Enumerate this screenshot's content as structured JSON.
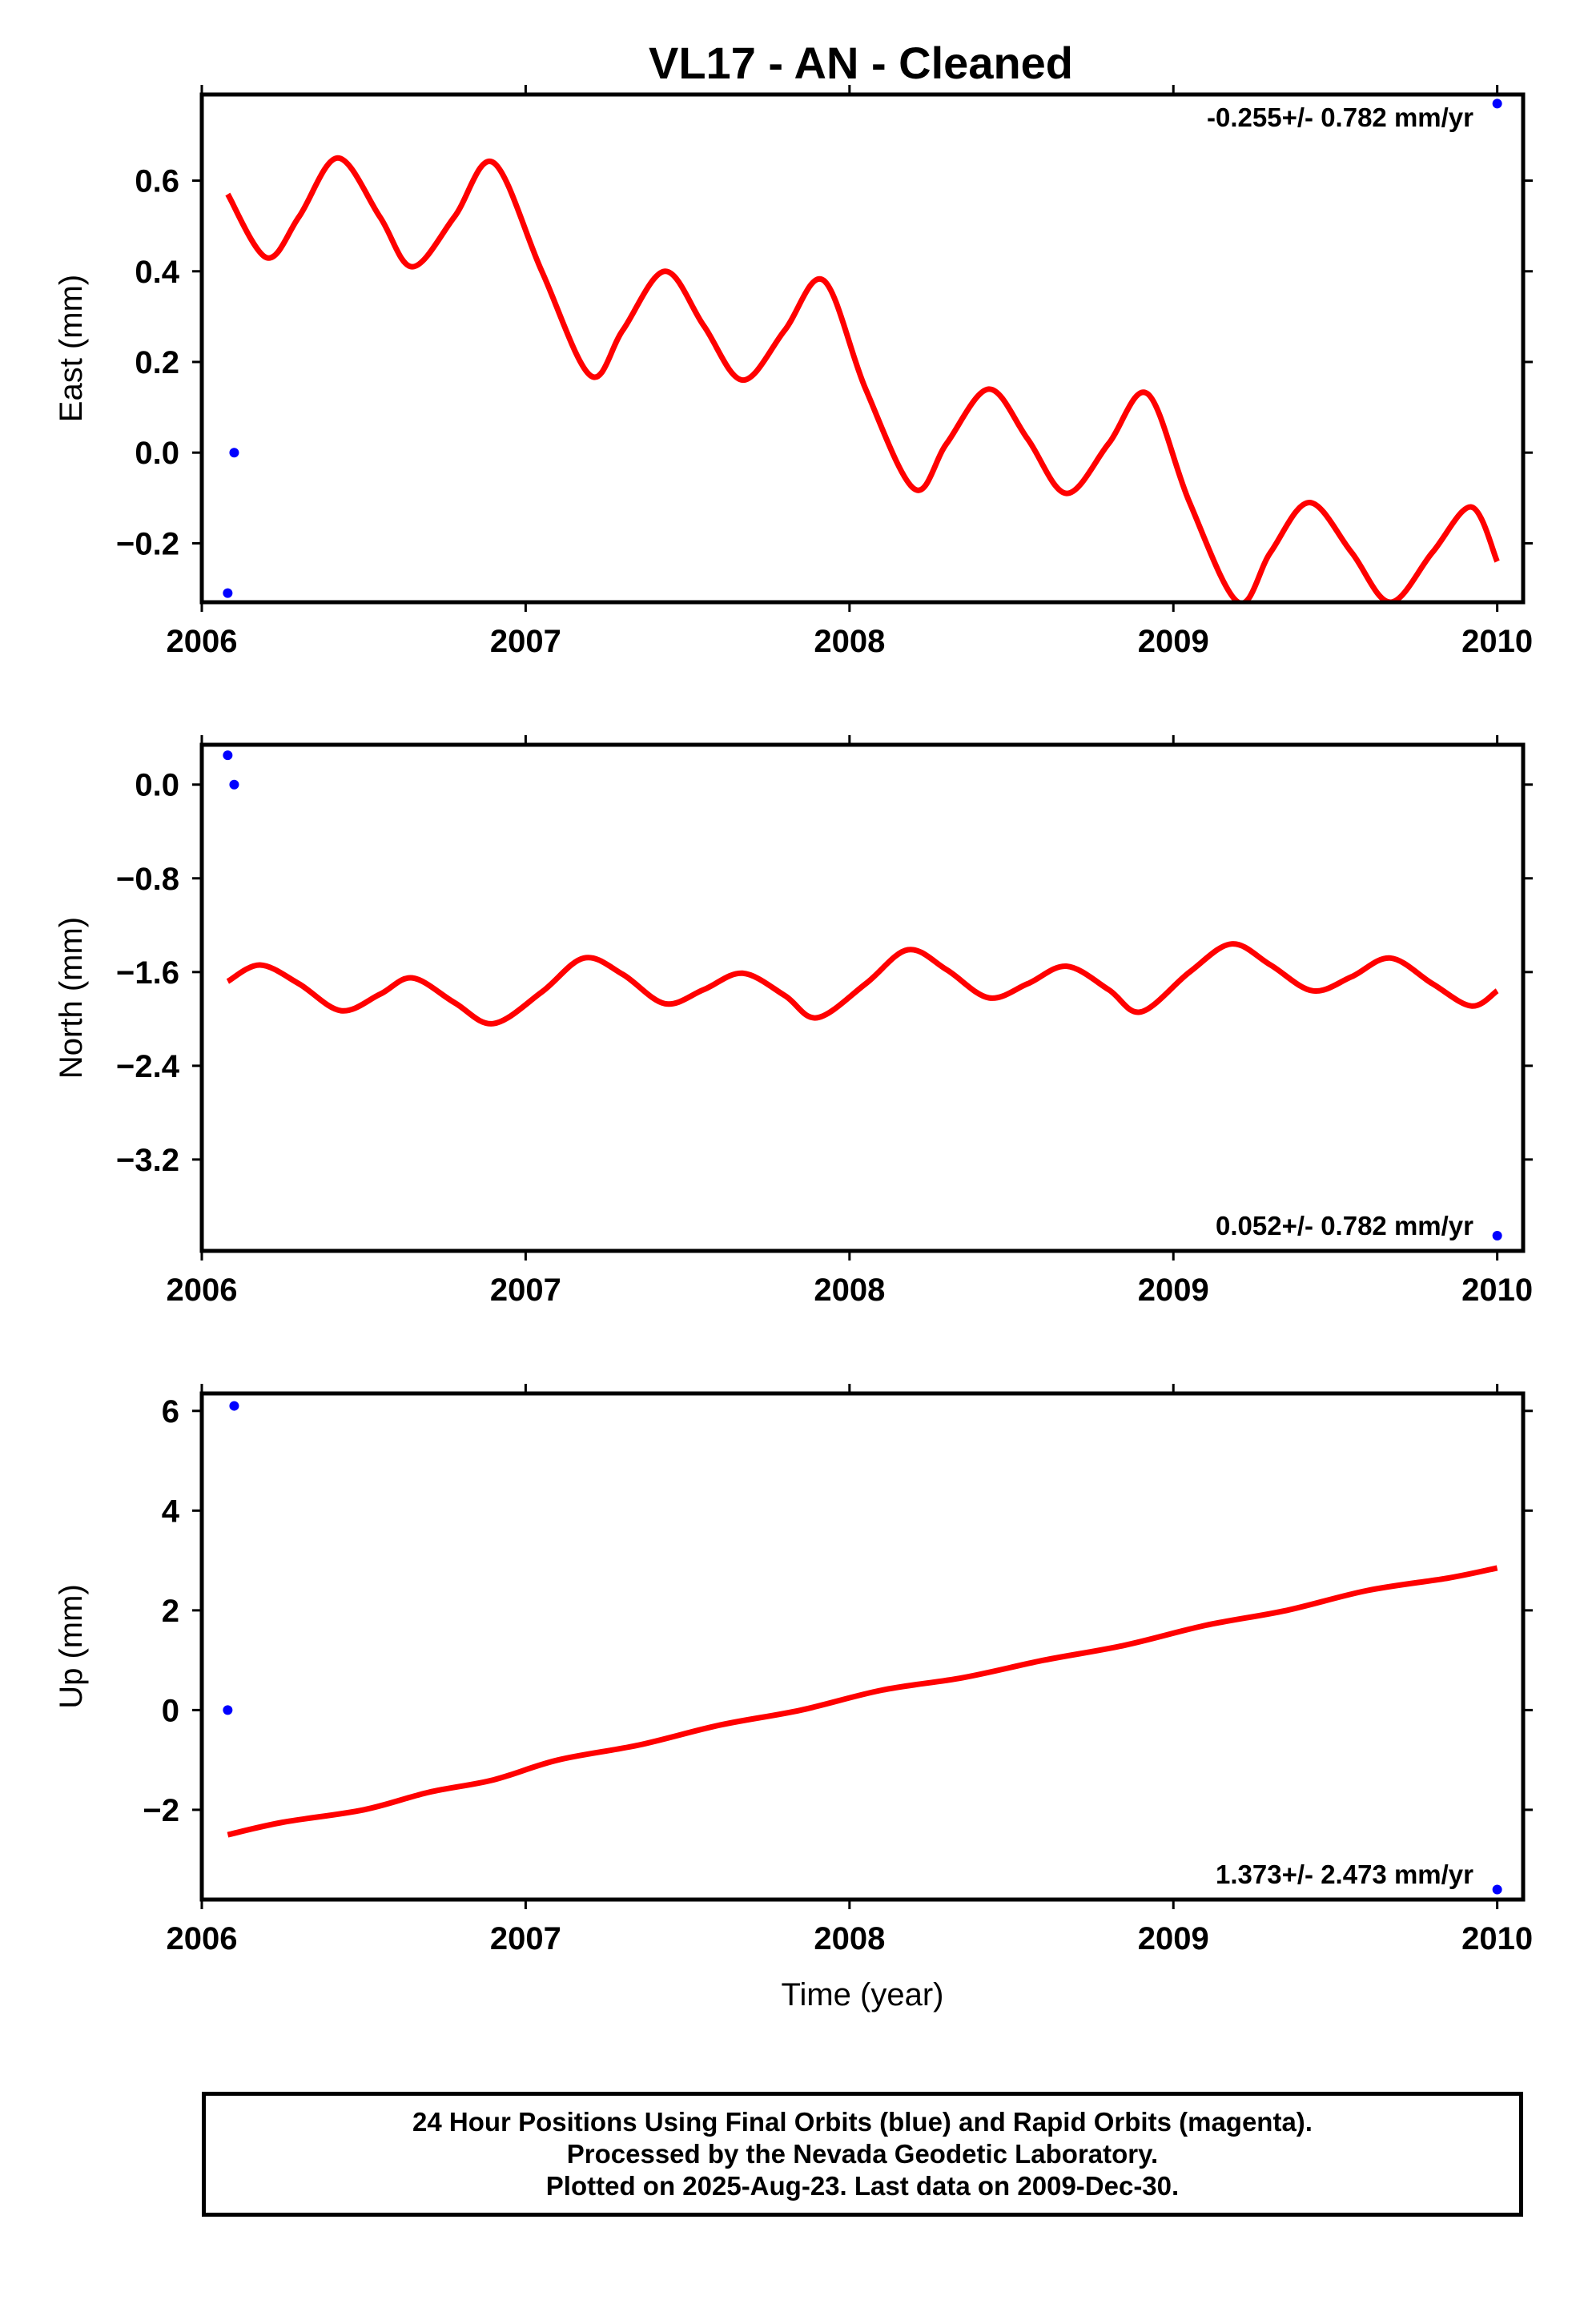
{
  "title": "VL17  - AN - Cleaned",
  "colors": {
    "model": "#ff0000",
    "final_orbits": "#0000ff",
    "frame": "#000000"
  },
  "footer": {
    "line1": "24 Hour Positions Using Final Orbits (blue) and Rapid Orbits (magenta).",
    "line2": "Processed by the Nevada Geodetic Laboratory.",
    "line3": "Plotted on 2025-Aug-23. Last data on 2009-Dec-30."
  },
  "chart_data": [
    {
      "type": "line",
      "ylabel": "East (mm)",
      "xlim": [
        2006.0,
        2010.08
      ],
      "ylim": [
        -0.33,
        0.79
      ],
      "x_ticks": [
        2006,
        2007,
        2008,
        2009,
        2010
      ],
      "x_tick_labels": [
        "2006",
        "2007",
        "2008",
        "2009",
        "2010"
      ],
      "y_ticks": [
        -0.2,
        0.0,
        0.2,
        0.4,
        0.6
      ],
      "y_tick_labels": [
        "−0.2",
        "0.0",
        "0.2",
        "0.4",
        "0.6"
      ],
      "rate_text": "-0.255+/- 0.782 mm/yr",
      "rate_position": "top-right",
      "points": {
        "x": [
          2006.08,
          2006.1,
          2010.0
        ],
        "y": [
          -0.31,
          0.0,
          0.77
        ]
      },
      "model": {
        "x": [
          2006.08,
          2006.2,
          2006.3,
          2006.42,
          2006.55,
          2006.65,
          2006.78,
          2006.9,
          2007.05,
          2007.2,
          2007.3,
          2007.43,
          2007.55,
          2007.67,
          2007.8,
          2007.92,
          2008.05,
          2008.2,
          2008.3,
          2008.43,
          2008.55,
          2008.67,
          2008.8,
          2008.92,
          2009.05,
          2009.2,
          2009.3,
          2009.42,
          2009.55,
          2009.67,
          2009.8,
          2009.92,
          2010.0
        ],
        "y": [
          0.57,
          0.43,
          0.52,
          0.65,
          0.52,
          0.41,
          0.52,
          0.64,
          0.4,
          0.17,
          0.27,
          0.4,
          0.28,
          0.16,
          0.27,
          0.38,
          0.14,
          -0.08,
          0.02,
          0.14,
          0.03,
          -0.09,
          0.02,
          0.13,
          -0.11,
          -0.33,
          -0.22,
          -0.11,
          -0.22,
          -0.33,
          -0.22,
          -0.12,
          -0.24
        ]
      }
    },
    {
      "type": "line",
      "ylabel": "North (mm)",
      "xlim": [
        2006.0,
        2010.08
      ],
      "ylim": [
        -3.98,
        0.34
      ],
      "x_ticks": [
        2006,
        2007,
        2008,
        2009,
        2010
      ],
      "x_tick_labels": [
        "2006",
        "2007",
        "2008",
        "2009",
        "2010"
      ],
      "y_ticks": [
        -3.2,
        -2.4,
        -1.6,
        -0.8,
        0.0
      ],
      "y_tick_labels": [
        "−3.2",
        "−2.4",
        "−1.6",
        "−0.8",
        "0.0"
      ],
      "rate_text": "0.052+/- 0.782 mm/yr",
      "rate_position": "bottom-right",
      "points": {
        "x": [
          2006.08,
          2006.1,
          2010.0
        ],
        "y": [
          0.25,
          0.0,
          -3.85
        ]
      },
      "model": {
        "x": [
          2006.08,
          2006.18,
          2006.3,
          2006.43,
          2006.55,
          2006.65,
          2006.78,
          2006.9,
          2007.05,
          2007.18,
          2007.3,
          2007.43,
          2007.55,
          2007.67,
          2007.8,
          2007.9,
          2008.05,
          2008.18,
          2008.3,
          2008.43,
          2008.55,
          2008.67,
          2008.8,
          2008.9,
          2009.05,
          2009.18,
          2009.3,
          2009.43,
          2009.55,
          2009.67,
          2009.8,
          2009.92,
          2010.0
        ],
        "y": [
          -1.68,
          -1.54,
          -1.7,
          -1.93,
          -1.79,
          -1.65,
          -1.86,
          -2.04,
          -1.77,
          -1.48,
          -1.62,
          -1.87,
          -1.75,
          -1.61,
          -1.8,
          -1.99,
          -1.7,
          -1.41,
          -1.58,
          -1.82,
          -1.7,
          -1.55,
          -1.75,
          -1.94,
          -1.6,
          -1.36,
          -1.54,
          -1.76,
          -1.64,
          -1.48,
          -1.7,
          -1.89,
          -1.76
        ]
      }
    },
    {
      "type": "line",
      "ylabel": "Up (mm)",
      "xlabel": "Time (year)",
      "xlim": [
        2006.0,
        2010.08
      ],
      "ylim": [
        -3.8,
        6.35
      ],
      "x_ticks": [
        2006,
        2007,
        2008,
        2009,
        2010
      ],
      "x_tick_labels": [
        "2006",
        "2007",
        "2008",
        "2009",
        "2010"
      ],
      "y_ticks": [
        -2,
        0,
        2,
        4,
        6
      ],
      "y_tick_labels": [
        "−2",
        "0",
        "2",
        "4",
        "6"
      ],
      "rate_text": "1.373+/- 2.473 mm/yr",
      "rate_position": "bottom-right",
      "points": {
        "x": [
          2006.08,
          2006.1,
          2010.0
        ],
        "y": [
          0.0,
          6.1,
          -3.6
        ]
      },
      "model": {
        "x": [
          2006.08,
          2006.25,
          2006.5,
          2006.7,
          2006.9,
          2007.1,
          2007.35,
          2007.6,
          2007.85,
          2008.1,
          2008.35,
          2008.6,
          2008.85,
          2009.1,
          2009.35,
          2009.6,
          2009.85,
          2010.0
        ],
        "y": [
          -2.5,
          -2.25,
          -2.0,
          -1.65,
          -1.4,
          -1.0,
          -0.7,
          -0.3,
          0.0,
          0.4,
          0.65,
          1.0,
          1.3,
          1.7,
          2.0,
          2.4,
          2.65,
          2.85
        ]
      }
    }
  ]
}
